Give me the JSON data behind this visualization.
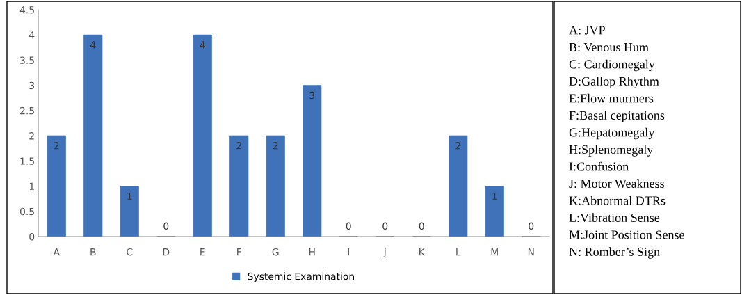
{
  "chart_data": {
    "type": "bar",
    "categories": [
      "A",
      "B",
      "C",
      "D",
      "E",
      "F",
      "G",
      "H",
      "I",
      "J",
      "K",
      "L",
      "M",
      "N"
    ],
    "series": [
      {
        "name": "Systemic Examination",
        "color": "#3f72b8",
        "values": [
          2,
          4,
          1,
          0,
          4,
          2,
          2,
          3,
          0,
          0,
          0,
          2,
          1,
          0
        ]
      }
    ],
    "ylim": [
      0,
      4.5
    ],
    "yticks": [
      0,
      0.5,
      1,
      1.5,
      2,
      2.5,
      3,
      3.5,
      4,
      4.5
    ],
    "grid": false,
    "legend": "bottom",
    "data_labels": true,
    "annotations": [
      "A: JVP",
      "B: Venous Hum",
      "C: Cardiomegaly",
      "D:Gallop Rhythm",
      "E:Flow murmers",
      "F:Basal cepitations",
      "G:Hepatomegaly",
      "H:Splenomegaly",
      "I:Confusion",
      "J: Motor Weakness",
      "K:Abnormal DTRs",
      "L:Vibration Sense",
      "M:Joint Position Sense",
      "N: Romber’s Sign"
    ]
  }
}
